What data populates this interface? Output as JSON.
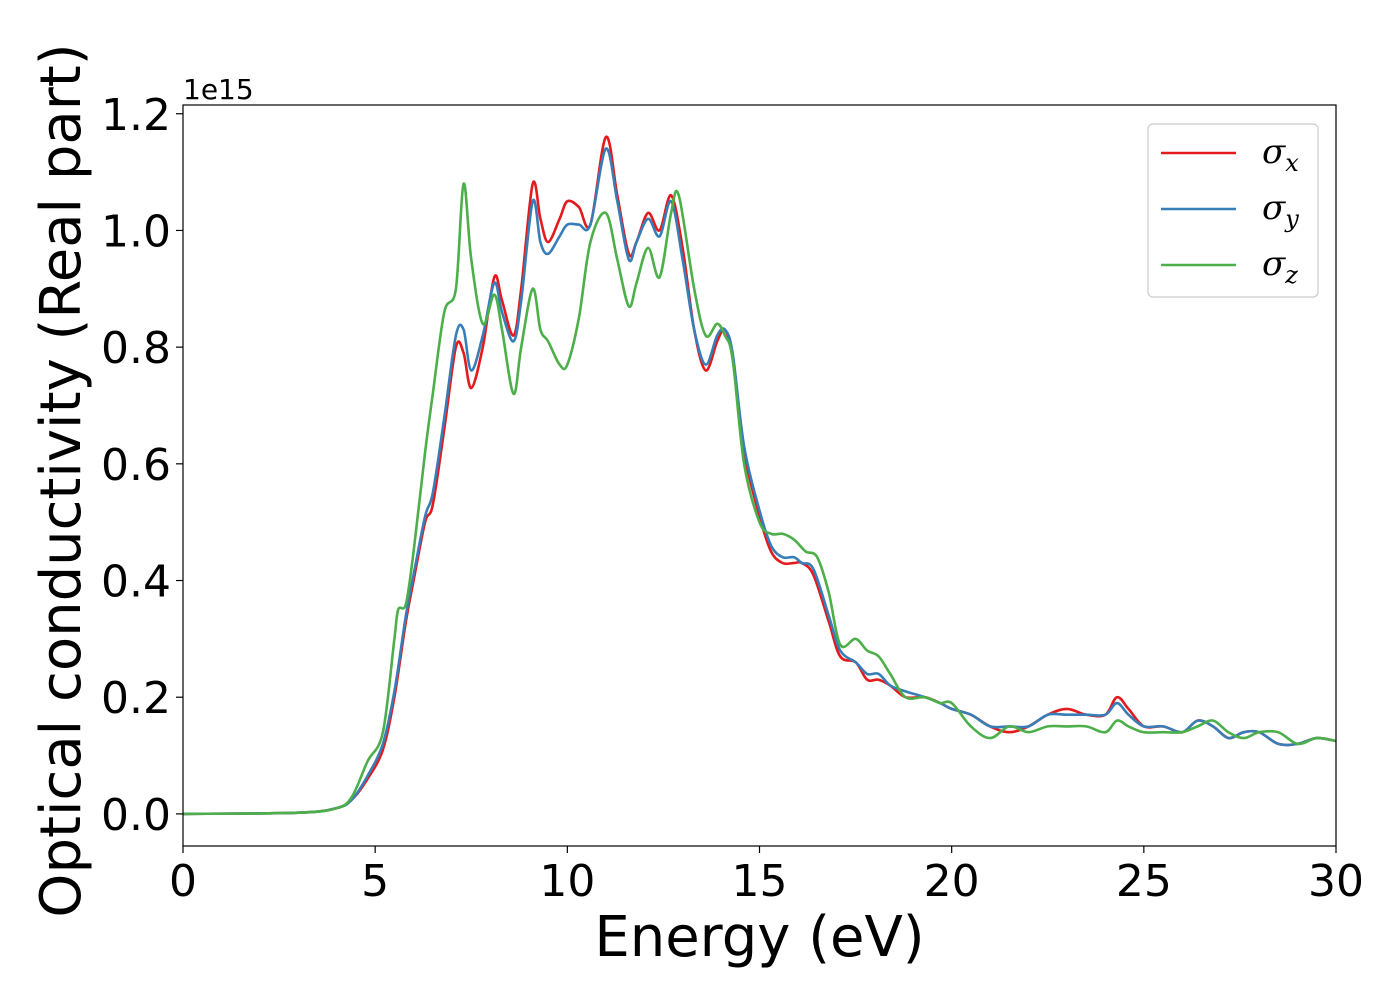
{
  "chart_data": {
    "type": "line",
    "xlabel": "Energy (eV)",
    "ylabel": "Optical conductivity (Real part)",
    "y_offset_label": "1e15",
    "xlim": [
      0,
      30
    ],
    "ylim": [
      -0.055,
      1.215
    ],
    "x_ticks": [
      0,
      5,
      10,
      15,
      20,
      25,
      30
    ],
    "x_tick_labels": [
      "0",
      "5",
      "10",
      "15",
      "20",
      "25",
      "30"
    ],
    "y_ticks": [
      0.0,
      0.2,
      0.4,
      0.6,
      0.8,
      1.0,
      1.2
    ],
    "y_tick_labels": [
      "0.0",
      "0.2",
      "0.4",
      "0.6",
      "0.8",
      "1.0",
      "1.2"
    ],
    "grid": false,
    "legend_position": "top-right",
    "series": [
      {
        "name": "σ",
        "subscript": "x",
        "color": "#e41a1c",
        "points": [
          [
            0,
            0
          ],
          [
            3,
            0.002
          ],
          [
            4,
            0.01
          ],
          [
            4.4,
            0.025
          ],
          [
            4.8,
            0.06
          ],
          [
            5.2,
            0.11
          ],
          [
            5.5,
            0.2
          ],
          [
            5.8,
            0.33
          ],
          [
            6,
            0.4
          ],
          [
            6.3,
            0.5
          ],
          [
            6.5,
            0.53
          ],
          [
            6.8,
            0.66
          ],
          [
            7.1,
            0.8
          ],
          [
            7.3,
            0.79
          ],
          [
            7.5,
            0.73
          ],
          [
            7.8,
            0.8
          ],
          [
            8.1,
            0.92
          ],
          [
            8.3,
            0.88
          ],
          [
            8.6,
            0.82
          ],
          [
            8.8,
            0.9
          ],
          [
            9.1,
            1.08
          ],
          [
            9.3,
            1.02
          ],
          [
            9.5,
            0.98
          ],
          [
            9.8,
            1.02
          ],
          [
            10,
            1.05
          ],
          [
            10.3,
            1.04
          ],
          [
            10.6,
            1.01
          ],
          [
            11,
            1.16
          ],
          [
            11.3,
            1.06
          ],
          [
            11.6,
            0.96
          ],
          [
            11.8,
            0.98
          ],
          [
            12.1,
            1.03
          ],
          [
            12.4,
            1.0
          ],
          [
            12.7,
            1.06
          ],
          [
            13,
            0.97
          ],
          [
            13.3,
            0.83
          ],
          [
            13.6,
            0.76
          ],
          [
            13.9,
            0.81
          ],
          [
            14.1,
            0.83
          ],
          [
            14.3,
            0.78
          ],
          [
            14.6,
            0.62
          ],
          [
            15,
            0.51
          ],
          [
            15.3,
            0.45
          ],
          [
            15.6,
            0.43
          ],
          [
            15.9,
            0.43
          ],
          [
            16.1,
            0.43
          ],
          [
            16.4,
            0.41
          ],
          [
            16.8,
            0.33
          ],
          [
            17.1,
            0.27
          ],
          [
            17.5,
            0.26
          ],
          [
            17.8,
            0.23
          ],
          [
            18.1,
            0.23
          ],
          [
            18.4,
            0.22
          ],
          [
            18.8,
            0.2
          ],
          [
            19.3,
            0.2
          ],
          [
            19.7,
            0.19
          ],
          [
            20,
            0.18
          ],
          [
            20.5,
            0.17
          ],
          [
            21,
            0.15
          ],
          [
            21.5,
            0.14
          ],
          [
            22,
            0.15
          ],
          [
            22.5,
            0.17
          ],
          [
            23,
            0.18
          ],
          [
            23.5,
            0.17
          ],
          [
            24,
            0.17
          ],
          [
            24.3,
            0.2
          ],
          [
            24.6,
            0.18
          ],
          [
            25,
            0.15
          ],
          [
            25.5,
            0.15
          ],
          [
            26,
            0.14
          ],
          [
            26.4,
            0.16
          ],
          [
            26.8,
            0.15
          ],
          [
            27.2,
            0.13
          ],
          [
            27.6,
            0.14
          ],
          [
            28,
            0.14
          ],
          [
            28.5,
            0.12
          ],
          [
            29,
            0.12
          ],
          [
            29.5,
            0.13
          ],
          [
            30,
            0.125
          ]
        ]
      },
      {
        "name": "σ",
        "subscript": "y",
        "color": "#377eb8",
        "points": [
          [
            0,
            0
          ],
          [
            3,
            0.002
          ],
          [
            4,
            0.01
          ],
          [
            4.4,
            0.025
          ],
          [
            4.8,
            0.065
          ],
          [
            5.2,
            0.12
          ],
          [
            5.5,
            0.21
          ],
          [
            5.8,
            0.34
          ],
          [
            6,
            0.41
          ],
          [
            6.3,
            0.51
          ],
          [
            6.5,
            0.55
          ],
          [
            6.8,
            0.68
          ],
          [
            7.1,
            0.82
          ],
          [
            7.3,
            0.83
          ],
          [
            7.5,
            0.76
          ],
          [
            7.8,
            0.82
          ],
          [
            8.1,
            0.91
          ],
          [
            8.3,
            0.86
          ],
          [
            8.6,
            0.81
          ],
          [
            8.8,
            0.88
          ],
          [
            9.1,
            1.05
          ],
          [
            9.3,
            0.98
          ],
          [
            9.5,
            0.96
          ],
          [
            9.8,
            0.99
          ],
          [
            10,
            1.01
          ],
          [
            10.3,
            1.01
          ],
          [
            10.6,
            1.01
          ],
          [
            11,
            1.14
          ],
          [
            11.3,
            1.05
          ],
          [
            11.6,
            0.95
          ],
          [
            11.8,
            0.98
          ],
          [
            12.1,
            1.02
          ],
          [
            12.4,
            0.99
          ],
          [
            12.7,
            1.05
          ],
          [
            13,
            0.95
          ],
          [
            13.3,
            0.83
          ],
          [
            13.6,
            0.77
          ],
          [
            13.9,
            0.82
          ],
          [
            14.1,
            0.83
          ],
          [
            14.3,
            0.79
          ],
          [
            14.6,
            0.63
          ],
          [
            15,
            0.52
          ],
          [
            15.3,
            0.46
          ],
          [
            15.6,
            0.44
          ],
          [
            15.9,
            0.44
          ],
          [
            16.1,
            0.43
          ],
          [
            16.4,
            0.42
          ],
          [
            16.8,
            0.34
          ],
          [
            17.1,
            0.28
          ],
          [
            17.5,
            0.26
          ],
          [
            17.8,
            0.24
          ],
          [
            18.1,
            0.24
          ],
          [
            18.4,
            0.22
          ],
          [
            18.8,
            0.21
          ],
          [
            19.3,
            0.2
          ],
          [
            19.7,
            0.19
          ],
          [
            20,
            0.18
          ],
          [
            20.5,
            0.17
          ],
          [
            21,
            0.15
          ],
          [
            21.5,
            0.15
          ],
          [
            22,
            0.15
          ],
          [
            22.5,
            0.17
          ],
          [
            23,
            0.17
          ],
          [
            23.5,
            0.17
          ],
          [
            24,
            0.17
          ],
          [
            24.3,
            0.19
          ],
          [
            24.6,
            0.17
          ],
          [
            25,
            0.15
          ],
          [
            25.5,
            0.15
          ],
          [
            26,
            0.14
          ],
          [
            26.4,
            0.16
          ],
          [
            26.8,
            0.15
          ],
          [
            27.2,
            0.13
          ],
          [
            27.6,
            0.14
          ],
          [
            28,
            0.14
          ],
          [
            28.5,
            0.12
          ],
          [
            29,
            0.12
          ],
          [
            29.5,
            0.13
          ],
          [
            30,
            0.125
          ]
        ]
      },
      {
        "name": "σ",
        "subscript": "z",
        "color": "#4daf4a",
        "points": [
          [
            0,
            0
          ],
          [
            3,
            0.002
          ],
          [
            4,
            0.01
          ],
          [
            4.4,
            0.03
          ],
          [
            4.8,
            0.09
          ],
          [
            5.2,
            0.14
          ],
          [
            5.5,
            0.3
          ],
          [
            5.6,
            0.35
          ],
          [
            5.8,
            0.36
          ],
          [
            6,
            0.45
          ],
          [
            6.3,
            0.62
          ],
          [
            6.5,
            0.72
          ],
          [
            6.8,
            0.86
          ],
          [
            7.1,
            0.9
          ],
          [
            7.3,
            1.08
          ],
          [
            7.5,
            0.95
          ],
          [
            7.8,
            0.84
          ],
          [
            8.1,
            0.89
          ],
          [
            8.3,
            0.83
          ],
          [
            8.6,
            0.72
          ],
          [
            8.8,
            0.8
          ],
          [
            9.1,
            0.9
          ],
          [
            9.3,
            0.83
          ],
          [
            9.5,
            0.81
          ],
          [
            9.8,
            0.77
          ],
          [
            10,
            0.77
          ],
          [
            10.3,
            0.85
          ],
          [
            10.6,
            0.98
          ],
          [
            11,
            1.03
          ],
          [
            11.3,
            0.95
          ],
          [
            11.6,
            0.87
          ],
          [
            11.8,
            0.91
          ],
          [
            12.1,
            0.97
          ],
          [
            12.4,
            0.92
          ],
          [
            12.7,
            1.03
          ],
          [
            12.9,
            1.06
          ],
          [
            13.3,
            0.9
          ],
          [
            13.6,
            0.82
          ],
          [
            13.9,
            0.84
          ],
          [
            14.1,
            0.82
          ],
          [
            14.3,
            0.78
          ],
          [
            14.6,
            0.6
          ],
          [
            15,
            0.5
          ],
          [
            15.3,
            0.48
          ],
          [
            15.6,
            0.48
          ],
          [
            15.9,
            0.47
          ],
          [
            16.2,
            0.45
          ],
          [
            16.5,
            0.44
          ],
          [
            16.8,
            0.38
          ],
          [
            17.1,
            0.29
          ],
          [
            17.5,
            0.3
          ],
          [
            17.8,
            0.28
          ],
          [
            18.1,
            0.27
          ],
          [
            18.4,
            0.24
          ],
          [
            18.8,
            0.2
          ],
          [
            19.3,
            0.2
          ],
          [
            19.7,
            0.19
          ],
          [
            20,
            0.19
          ],
          [
            20.5,
            0.15
          ],
          [
            21,
            0.13
          ],
          [
            21.5,
            0.15
          ],
          [
            22,
            0.14
          ],
          [
            22.5,
            0.15
          ],
          [
            23,
            0.15
          ],
          [
            23.5,
            0.15
          ],
          [
            24,
            0.14
          ],
          [
            24.3,
            0.16
          ],
          [
            24.6,
            0.15
          ],
          [
            25,
            0.14
          ],
          [
            25.5,
            0.14
          ],
          [
            26,
            0.14
          ],
          [
            26.4,
            0.15
          ],
          [
            26.8,
            0.16
          ],
          [
            27.2,
            0.14
          ],
          [
            27.6,
            0.13
          ],
          [
            28,
            0.14
          ],
          [
            28.5,
            0.14
          ],
          [
            29,
            0.12
          ],
          [
            29.5,
            0.13
          ],
          [
            30,
            0.125
          ]
        ]
      }
    ]
  }
}
